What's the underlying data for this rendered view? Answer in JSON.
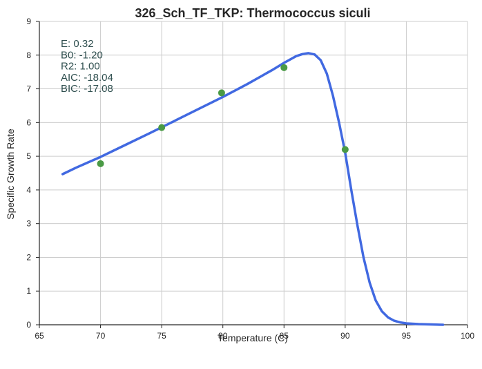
{
  "chart_data": {
    "type": "scatter",
    "title": "326_Sch_TF_TKP: Thermococcus siculi",
    "xlabel": "Temperature (C)",
    "ylabel": "Specific Growth Rate",
    "xlim": [
      65,
      100
    ],
    "ylim": [
      0,
      9
    ],
    "x_ticks": [
      "65",
      "70",
      "75",
      "80",
      "85",
      "90",
      "95",
      "100"
    ],
    "y_ticks": [
      "0",
      "1",
      "2",
      "3",
      "4",
      "5",
      "6",
      "7",
      "8",
      "9"
    ],
    "grid": true,
    "points": {
      "x": [
        70.0,
        75.0,
        79.9,
        85.0,
        90.0
      ],
      "y": [
        4.78,
        5.85,
        6.88,
        7.63,
        5.2
      ],
      "color": "#4a9a45"
    },
    "fit_curve": {
      "color": "#4169e1",
      "x": [
        66.9,
        68,
        70,
        72,
        74,
        76,
        78,
        80,
        82,
        84,
        85,
        86,
        86.5,
        87,
        87.5,
        88,
        88.5,
        89,
        89.5,
        90,
        90.5,
        91,
        91.5,
        92,
        92.5,
        93,
        93.5,
        94,
        94.5,
        95,
        96,
        97,
        98
      ],
      "y": [
        4.47,
        4.66,
        4.98,
        5.33,
        5.68,
        6.04,
        6.4,
        6.76,
        7.14,
        7.55,
        7.77,
        7.97,
        8.03,
        8.06,
        8.02,
        7.85,
        7.45,
        6.8,
        6.0,
        5.1,
        4.0,
        2.95,
        2.0,
        1.25,
        0.72,
        0.4,
        0.22,
        0.12,
        0.07,
        0.04,
        0.02,
        0.01,
        0.0
      ]
    },
    "annotations": [
      "E:  0.32",
      "B0:  -1.20",
      "R2:  1.00",
      "AIC: -18.04",
      "BIC: -17.08"
    ],
    "annotation_color": "#2f4f4f"
  }
}
